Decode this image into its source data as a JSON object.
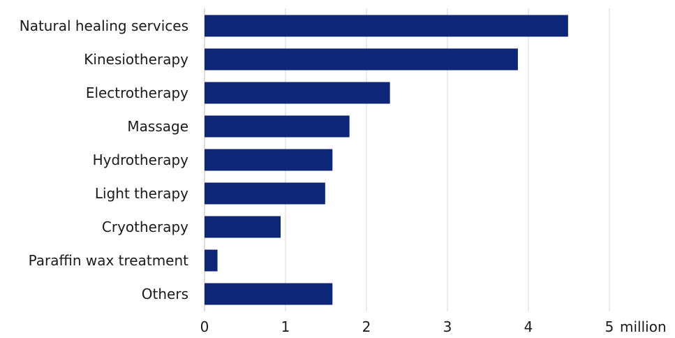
{
  "chart_data": {
    "type": "bar",
    "orientation": "horizontal",
    "categories": [
      "Natural healing services",
      "Kinesiotherapy",
      "Electrotherapy",
      "Massage",
      "Hydrotherapy",
      "Light therapy",
      "Cryotherapy",
      "Paraffin wax treatment",
      "Others"
    ],
    "values": [
      4.49,
      3.87,
      2.29,
      1.79,
      1.58,
      1.49,
      0.94,
      0.16,
      1.58
    ],
    "xlim": [
      0,
      5
    ],
    "xticks": [
      "0",
      "1",
      "2",
      "3",
      "4",
      "5"
    ],
    "unit_label": "million",
    "bar_color": "#0d2677",
    "grid": true
  }
}
